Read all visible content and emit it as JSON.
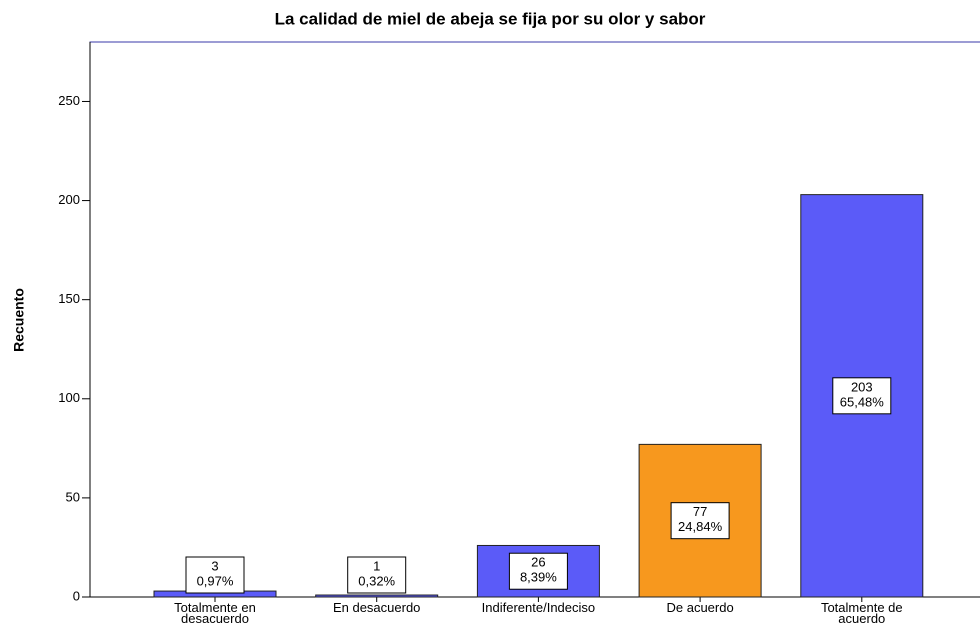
{
  "chart_data": {
    "type": "bar",
    "title": "La calidad de miel de abeja se fija por su olor y sabor",
    "y_label": "Recuento",
    "categories": [
      "Totalmente en\ndesacuerdo",
      "En desacuerdo",
      "Indiferente/Indeciso",
      "De acuerdo",
      "Totalmente de\nacuerdo"
    ],
    "values": [
      3,
      1,
      26,
      77,
      203
    ],
    "percentages": [
      0.97,
      0.32,
      8.39,
      24.84,
      65.48
    ],
    "percentage_labels": [
      "0,97%",
      "0,32%",
      "8,39%",
      "24,84%",
      "65,48%"
    ],
    "colors": [
      "#5b5bf8",
      "#5b5bf8",
      "#5b5bf8",
      "#f7981e",
      "#5b5bf8"
    ],
    "ylim": [
      0,
      280
    ],
    "yticks": [
      0,
      50,
      100,
      150,
      200,
      250
    ]
  }
}
